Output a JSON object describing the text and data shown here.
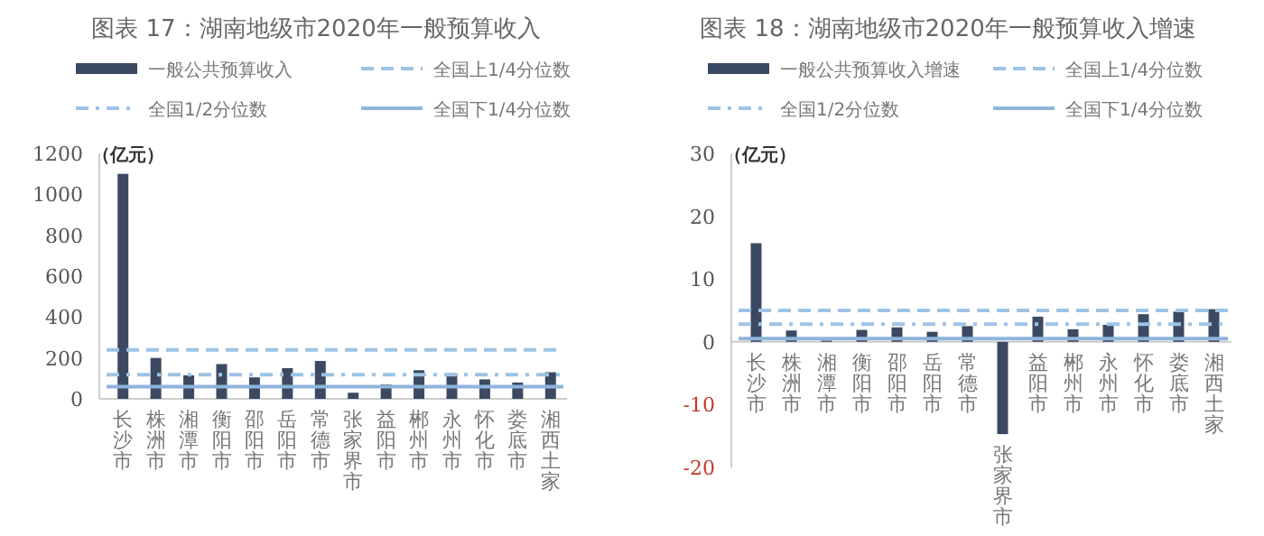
{
  "chart_data": [
    {
      "type": "bar",
      "title": "图表 17：湖南地级市2020年一般预算收入",
      "ylabel": "（亿元）",
      "categories": [
        "长沙市",
        "株洲市",
        "湘潭市",
        "衡阳市",
        "邵阳市",
        "岳阳市",
        "常德市",
        "张家界市",
        "益阳市",
        "郴州市",
        "永州市",
        "怀化市",
        "娄底市",
        "湘西土家"
      ],
      "series": [
        {
          "name": "一般公共预算收入",
          "color": "#3b4a62",
          "values": [
            1100,
            200,
            115,
            170,
            105,
            150,
            185,
            30,
            70,
            140,
            125,
            95,
            80,
            130
          ]
        }
      ],
      "ref_lines": [
        {
          "axis": "y",
          "value": 239,
          "label": "全国上1/4分位数",
          "color": "#9dc3e6",
          "line_style": "dashed"
        },
        {
          "axis": "y",
          "value": 118,
          "label": "全国1/2分位数",
          "color": "#9dc3e6",
          "line_style": "dashdot"
        },
        {
          "axis": "y",
          "value": 60,
          "label": "全国下1/4分位数",
          "color": "#8fb4dc",
          "line_style": "solid"
        }
      ],
      "ylim": [
        0,
        1200
      ],
      "yticks": [
        0,
        200,
        400,
        600,
        800,
        1000,
        1200
      ],
      "legend": "top",
      "grid": false
    },
    {
      "type": "bar",
      "title": "图表 18：湖南地级市2020年一般预算收入增速",
      "ylabel": "（亿元）",
      "categories": [
        "长沙市",
        "株洲市",
        "湘潭市",
        "衡阳市",
        "邵阳市",
        "岳阳市",
        "常德市",
        "张家界市",
        "益阳市",
        "郴州市",
        "永州市",
        "怀化市",
        "娄底市",
        "湘西土家"
      ],
      "series": [
        {
          "name": "一般公共预算收入增速",
          "color": "#3b4a62",
          "values": [
            15.7,
            1.8,
            0.2,
            1.9,
            2.3,
            1.6,
            2.5,
            -14.7,
            4.0,
            2.0,
            2.7,
            4.4,
            4.8,
            5.2
          ]
        }
      ],
      "ref_lines": [
        {
          "axis": "y",
          "value": 5.0,
          "label": "全国上1/4分位数",
          "color": "#9dc3e6",
          "line_style": "dashed"
        },
        {
          "axis": "y",
          "value": 2.8,
          "label": "全国1/2分位数",
          "color": "#9dc3e6",
          "line_style": "dashdot"
        },
        {
          "axis": "y",
          "value": 0.5,
          "label": "全国下1/4分位数",
          "color": "#8fb4dc",
          "line_style": "solid"
        }
      ],
      "ylim": [
        -20,
        30
      ],
      "yticks": [
        -20,
        -10,
        0,
        10,
        20,
        30
      ],
      "legend": "top",
      "grid": false
    }
  ]
}
